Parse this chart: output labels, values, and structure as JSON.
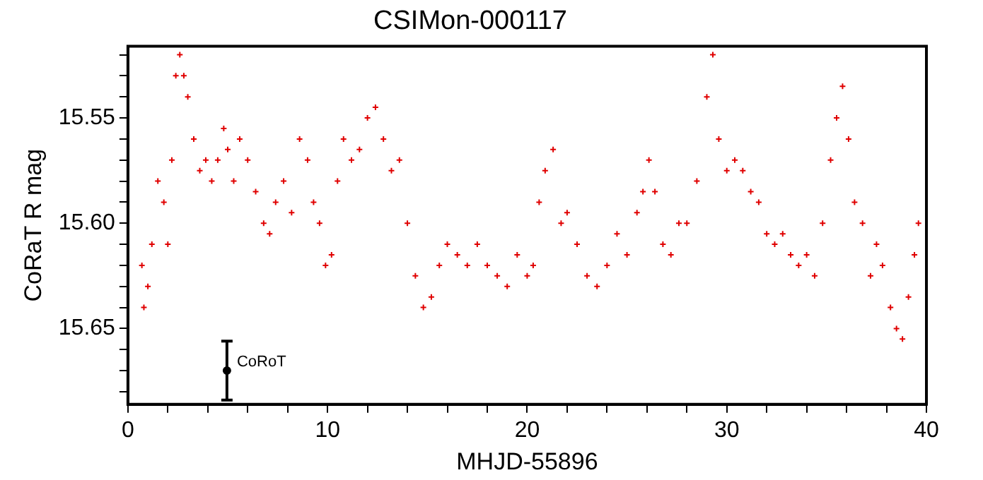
{
  "chart_data": {
    "type": "scatter",
    "title": "CSIMon-000117",
    "xlabel": "MHJD-55896",
    "ylabel": "CoRaT R mag",
    "xlim": [
      0,
      40
    ],
    "xticks": [
      0,
      {
        "value": 2,
        "label": null
      },
      {
        "value": 4,
        "label": null
      },
      {
        "value": 6,
        "label": null
      },
      {
        "value": 8,
        "label": null
      },
      10,
      {
        "value": 12,
        "label": null
      },
      {
        "value": 14,
        "label": null
      },
      {
        "value": 16,
        "label": null
      },
      {
        "value": 18,
        "label": null
      },
      20,
      {
        "value": 22,
        "label": null
      },
      {
        "value": 24,
        "label": null
      },
      {
        "value": 26,
        "label": null
      },
      {
        "value": 28,
        "label": null
      },
      30,
      {
        "value": 32,
        "label": null
      },
      {
        "value": 34,
        "label": null
      },
      {
        "value": 36,
        "label": null
      },
      {
        "value": 38,
        "label": null
      },
      40
    ],
    "ylim": [
      15.686,
      15.516
    ],
    "yticks": [
      {
        "value": 15.52,
        "label": null
      },
      {
        "value": 15.53,
        "label": null
      },
      {
        "value": 15.54,
        "label": null
      },
      15.55,
      {
        "value": 15.56,
        "label": null
      },
      {
        "value": 15.57,
        "label": null
      },
      {
        "value": 15.58,
        "label": null
      },
      {
        "value": 15.59,
        "label": null
      },
      {
        "value": 15.6,
        "label": "15.60"
      },
      {
        "value": 15.61,
        "label": null
      },
      {
        "value": 15.62,
        "label": null
      },
      {
        "value": 15.63,
        "label": null
      },
      {
        "value": 15.64,
        "label": null
      },
      15.65,
      {
        "value": 15.66,
        "label": null
      },
      {
        "value": 15.67,
        "label": null
      },
      {
        "value": 15.68,
        "label": null
      }
    ],
    "legend": false,
    "series": [
      {
        "color": "#e00000",
        "marker": "cross",
        "x": [
          0.7,
          0.8,
          1.0,
          1.2,
          1.5,
          1.8,
          2.0,
          2.2,
          2.4,
          2.6,
          2.8,
          3.0,
          3.3,
          3.6,
          3.9,
          4.2,
          4.5,
          4.8,
          5.0,
          5.3,
          5.6,
          6.0,
          6.4,
          6.8,
          7.1,
          7.4,
          7.8,
          8.2,
          8.6,
          9.0,
          9.3,
          9.6,
          9.9,
          10.2,
          10.5,
          10.8,
          11.2,
          11.6,
          12.0,
          12.4,
          12.8,
          13.2,
          13.6,
          14.0,
          14.4,
          14.8,
          15.2,
          15.6,
          16.0,
          16.5,
          17.0,
          17.5,
          18.0,
          18.5,
          19.0,
          19.5,
          20.0,
          20.3,
          20.6,
          20.9,
          21.3,
          21.7,
          22.0,
          22.5,
          23.0,
          23.5,
          24.0,
          24.5,
          25.0,
          25.5,
          25.8,
          26.1,
          26.4,
          26.8,
          27.2,
          27.6,
          28.0,
          28.5,
          29.0,
          29.3,
          29.6,
          30.0,
          30.4,
          30.8,
          31.2,
          31.6,
          32.0,
          32.4,
          32.8,
          33.2,
          33.6,
          34.0,
          34.4,
          34.8,
          35.2,
          35.5,
          35.8,
          36.1,
          36.4,
          36.8,
          37.2,
          37.5,
          37.8,
          38.2,
          38.5,
          38.8,
          39.1,
          39.4,
          39.6
        ],
        "values": [
          15.62,
          15.64,
          15.63,
          15.61,
          15.58,
          15.59,
          15.61,
          15.57,
          15.53,
          15.52,
          15.53,
          15.54,
          15.56,
          15.575,
          15.57,
          15.58,
          15.57,
          15.555,
          15.565,
          15.58,
          15.56,
          15.57,
          15.585,
          15.6,
          15.605,
          15.59,
          15.58,
          15.595,
          15.56,
          15.57,
          15.59,
          15.6,
          15.62,
          15.615,
          15.58,
          15.56,
          15.57,
          15.565,
          15.55,
          15.545,
          15.56,
          15.575,
          15.57,
          15.6,
          15.625,
          15.64,
          15.635,
          15.62,
          15.61,
          15.615,
          15.62,
          15.61,
          15.62,
          15.625,
          15.63,
          15.615,
          15.625,
          15.62,
          15.59,
          15.575,
          15.565,
          15.6,
          15.595,
          15.61,
          15.625,
          15.63,
          15.62,
          15.605,
          15.615,
          15.595,
          15.585,
          15.57,
          15.585,
          15.61,
          15.615,
          15.6,
          15.6,
          15.58,
          15.54,
          15.52,
          15.56,
          15.575,
          15.57,
          15.575,
          15.585,
          15.59,
          15.605,
          15.61,
          15.605,
          15.615,
          15.62,
          15.615,
          15.625,
          15.6,
          15.57,
          15.55,
          15.535,
          15.56,
          15.59,
          15.6,
          15.625,
          15.61,
          15.62,
          15.64,
          15.65,
          15.655,
          15.635,
          15.615,
          15.6
        ]
      },
      {
        "name": "CoRoT",
        "color": "#000000",
        "marker": "circle",
        "x": [
          4.96
        ],
        "values": [
          15.67
        ],
        "errors": [
          [
            15.656,
            15.684
          ]
        ]
      }
    ]
  }
}
